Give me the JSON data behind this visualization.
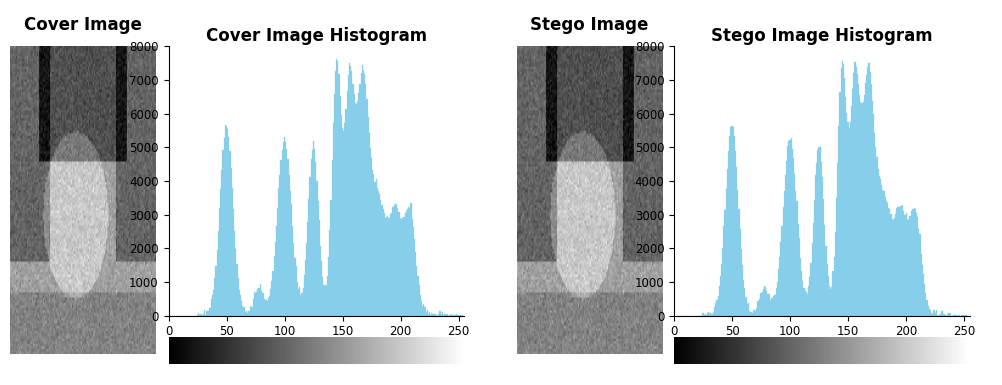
{
  "cover_title": "Cover Image Histogram",
  "stego_title": "Stego Image Histogram",
  "cover_label": "Cover Image",
  "stego_label": "Stego Image",
  "bar_color": "#87CEEB",
  "xlim": [
    0,
    255
  ],
  "ylim": [
    0,
    8000
  ],
  "yticks": [
    0,
    1000,
    2000,
    3000,
    4000,
    5000,
    6000,
    7000,
    8000
  ],
  "xticks": [
    0,
    50,
    100,
    150,
    200,
    250
  ],
  "title_fontsize": 12,
  "label_fontsize": 12,
  "label_fontweight": "bold",
  "background_color": "#ffffff"
}
